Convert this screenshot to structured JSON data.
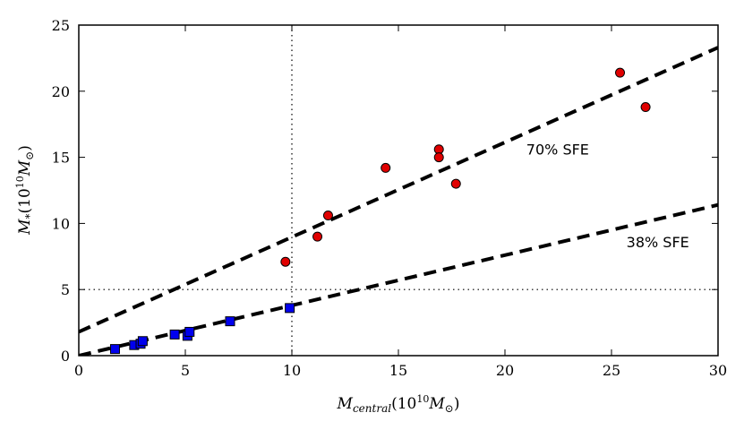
{
  "chart_data": {
    "type": "scatter",
    "title": "",
    "xlabel": {
      "main": "M",
      "sub": "central",
      "paren_open": "(10",
      "exp": "10",
      "unit": "M",
      "unit_sub": "⊙",
      "paren_close": ")"
    },
    "ylabel": {
      "main": "M",
      "sub": "*",
      "paren_open": "(10",
      "exp": "10",
      "unit": "M",
      "unit_sub": "⊙",
      "paren_close": ")"
    },
    "xlim": [
      0,
      30
    ],
    "ylim": [
      0,
      25
    ],
    "xticks": [
      0,
      5,
      10,
      15,
      20,
      25,
      30
    ],
    "yticks": [
      0,
      5,
      10,
      15,
      20,
      25
    ],
    "series": [
      {
        "name": "red-points",
        "marker": "circle",
        "color": "#e00000",
        "points": [
          [
            9.7,
            7.1
          ],
          [
            11.2,
            9.0
          ],
          [
            11.7,
            10.6
          ],
          [
            14.4,
            14.2
          ],
          [
            16.9,
            15.6
          ],
          [
            16.9,
            15.0
          ],
          [
            17.7,
            13.0
          ],
          [
            25.4,
            21.4
          ],
          [
            26.6,
            18.8
          ]
        ]
      },
      {
        "name": "blue-points",
        "marker": "square",
        "color": "#0000ee",
        "points": [
          [
            1.7,
            0.5
          ],
          [
            2.6,
            0.8
          ],
          [
            2.9,
            0.9
          ],
          [
            3.0,
            1.1
          ],
          [
            4.5,
            1.6
          ],
          [
            5.1,
            1.5
          ],
          [
            5.2,
            1.8
          ],
          [
            7.1,
            2.6
          ],
          [
            9.9,
            3.6
          ]
        ]
      }
    ],
    "fit_lines": [
      {
        "name": "fit-70",
        "x": [
          0,
          30
        ],
        "y": [
          1.8,
          23.3
        ],
        "style": "dashed",
        "label": "70% SFE",
        "label_at": [
          21.0,
          15.2
        ]
      },
      {
        "name": "fit-38",
        "x": [
          0,
          30
        ],
        "y": [
          0.0,
          11.4
        ],
        "style": "dashed",
        "label": "38% SFE",
        "label_at": [
          25.7,
          8.2
        ]
      }
    ],
    "ref_lines": [
      {
        "name": "vline-x10",
        "orientation": "vertical",
        "value": 10,
        "style": "dotted"
      },
      {
        "name": "hline-y5",
        "orientation": "horizontal",
        "value": 5,
        "style": "dotted"
      }
    ],
    "grid": false,
    "legend": "none"
  }
}
